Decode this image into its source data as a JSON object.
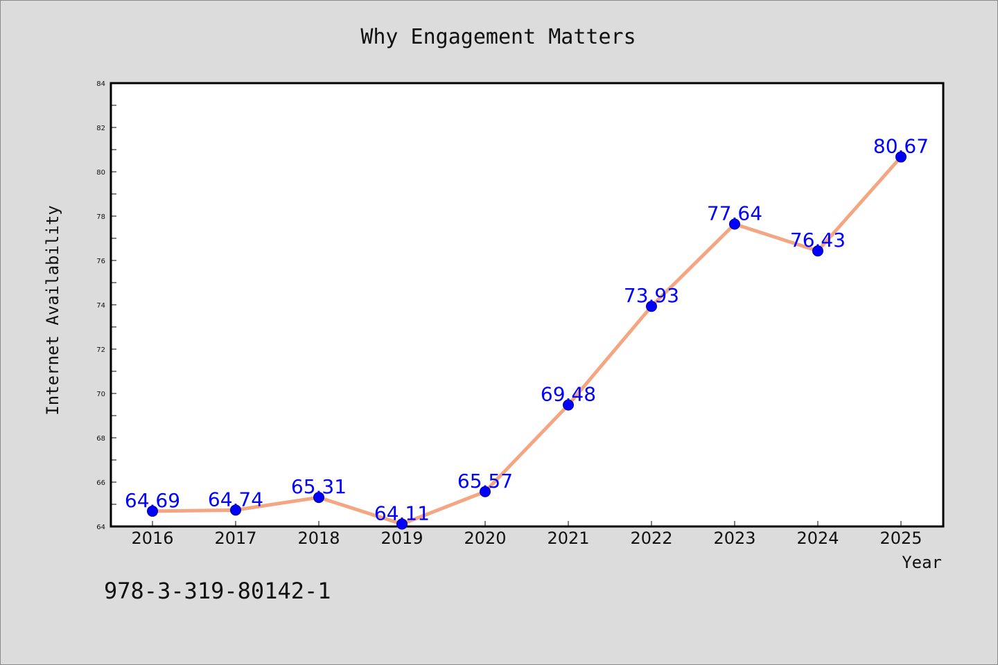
{
  "chart_data": {
    "type": "line",
    "title": "Why Engagement Matters",
    "xlabel": "Year",
    "ylabel": "Internet Availability",
    "x": [
      "2016",
      "2017",
      "2018",
      "2019",
      "2020",
      "2021",
      "2022",
      "2023",
      "2024",
      "2025"
    ],
    "y": [
      64.69,
      64.74,
      65.31,
      64.11,
      65.57,
      69.48,
      73.93,
      77.64,
      76.43,
      80.67
    ],
    "data_labels": [
      "64.69",
      "64.74",
      "65.31",
      "64.11",
      "65.57",
      "69.48",
      "73.93",
      "77.64",
      "76.43",
      "80.67"
    ],
    "ylim": [
      64,
      84
    ],
    "yticks": [
      "64",
      "66",
      "68",
      "70",
      "72",
      "74",
      "76",
      "78",
      "80",
      "82",
      "84"
    ],
    "grid": false,
    "line_color": "#f4a582",
    "marker_color": "#0000ff",
    "label_color": "#0000ff"
  },
  "footnote": "978-3-319-80142-1"
}
